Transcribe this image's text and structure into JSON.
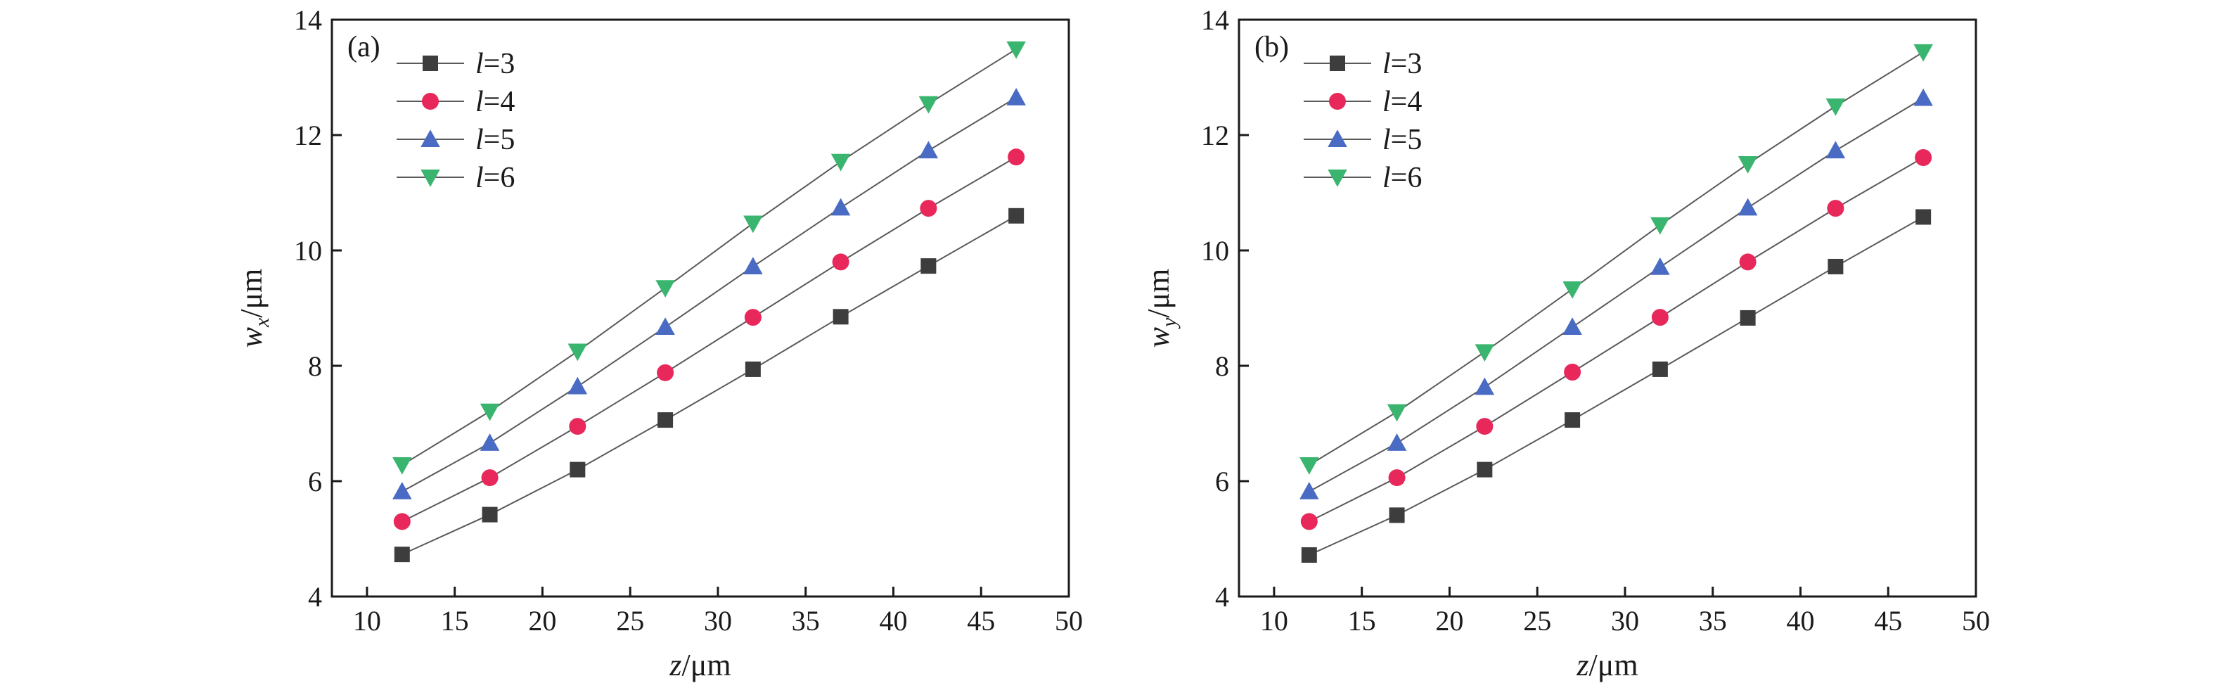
{
  "chart_data": [
    {
      "type": "line",
      "panel_label": "(a)",
      "xlabel": "z/μm",
      "ylabel": "w_x/μm",
      "ylabel_main": "w",
      "ylabel_sub": "x",
      "ylabel_unit": "/μm",
      "xlabel_var": "z",
      "xlabel_unit": "/μm",
      "xlim": [
        8,
        50
      ],
      "ylim": [
        4,
        14
      ],
      "xticks": [
        10,
        15,
        20,
        25,
        30,
        35,
        40,
        45,
        50
      ],
      "yticks": [
        4,
        6,
        8,
        10,
        12,
        14
      ],
      "legend_position": "top-left",
      "x": [
        12,
        17,
        22,
        27,
        32,
        37,
        42,
        47
      ],
      "series": [
        {
          "name": "l=3",
          "name_var": "l",
          "name_value": "=3",
          "marker": "square",
          "color": "#3d3d3d",
          "values": [
            4.73,
            5.42,
            6.2,
            7.06,
            7.94,
            8.85,
            9.73,
            10.6
          ]
        },
        {
          "name": "l=4",
          "name_var": "l",
          "name_value": "=4",
          "marker": "circle",
          "color": "#e8285a",
          "values": [
            5.3,
            6.06,
            6.95,
            7.88,
            8.84,
            9.8,
            10.73,
            11.62
          ]
        },
        {
          "name": "l=5",
          "name_var": "l",
          "name_value": "=5",
          "marker": "triangle-up",
          "color": "#4a6bc4",
          "values": [
            5.82,
            6.66,
            7.64,
            8.67,
            9.72,
            10.74,
            11.73,
            12.65
          ]
        },
        {
          "name": "l=6",
          "name_var": "l",
          "name_value": "=6",
          "marker": "triangle-down",
          "color": "#3ab56f",
          "values": [
            6.28,
            7.21,
            8.25,
            9.35,
            10.47,
            11.54,
            12.54,
            13.49
          ]
        }
      ]
    },
    {
      "type": "line",
      "panel_label": "(b)",
      "xlabel": "z/μm",
      "ylabel": "w_y/μm",
      "ylabel_main": "w",
      "ylabel_sub": "y",
      "ylabel_unit": "/μm",
      "xlabel_var": "z",
      "xlabel_unit": "/μm",
      "xlim": [
        8,
        50
      ],
      "ylim": [
        4,
        14
      ],
      "xticks": [
        10,
        15,
        20,
        25,
        30,
        35,
        40,
        45,
        50
      ],
      "yticks": [
        4,
        6,
        8,
        10,
        12,
        14
      ],
      "legend_position": "top-left",
      "x": [
        12,
        17,
        22,
        27,
        32,
        37,
        42,
        47
      ],
      "series": [
        {
          "name": "l=3",
          "name_var": "l",
          "name_value": "=3",
          "marker": "square",
          "color": "#3d3d3d",
          "values": [
            4.72,
            5.41,
            6.2,
            7.06,
            7.94,
            8.83,
            9.72,
            10.58
          ]
        },
        {
          "name": "l=4",
          "name_var": "l",
          "name_value": "=4",
          "marker": "circle",
          "color": "#e8285a",
          "values": [
            5.3,
            6.06,
            6.95,
            7.89,
            8.84,
            9.8,
            10.73,
            11.61
          ]
        },
        {
          "name": "l=5",
          "name_var": "l",
          "name_value": "=5",
          "marker": "triangle-up",
          "color": "#4a6bc4",
          "values": [
            5.82,
            6.66,
            7.63,
            8.67,
            9.71,
            10.74,
            11.73,
            12.64
          ]
        },
        {
          "name": "l=6",
          "name_var": "l",
          "name_value": "=6",
          "marker": "triangle-down",
          "color": "#3ab56f",
          "values": [
            6.28,
            7.2,
            8.24,
            9.33,
            10.44,
            11.5,
            12.5,
            13.44
          ]
        }
      ]
    }
  ]
}
